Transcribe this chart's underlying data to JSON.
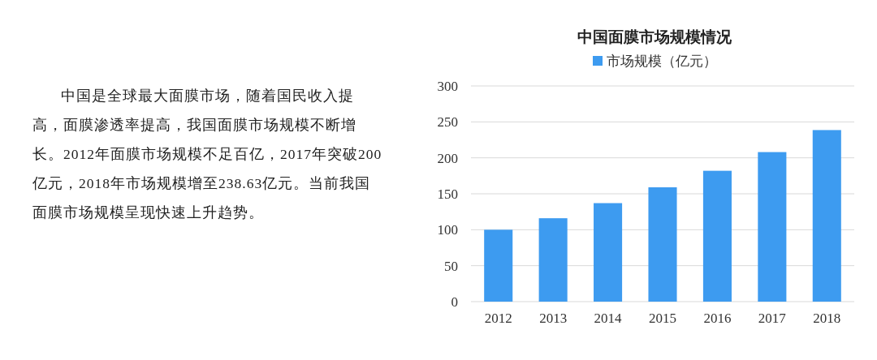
{
  "chart_data": [
    {
      "type": "other",
      "annotations": [
        "中国是全球最大面膜市场，随着国民收入提高，面膜渗透率提高，我国面膜市场规模不断增长。2012年面膜市场规模不足百亿，2017年突破200亿元，2018年市场规模增至238.63亿元。当前我国面膜市场规模呈现快速上升趋势。"
      ]
    },
    {
      "type": "bar",
      "title": "中国面膜市场规模情况",
      "categories": [
        "2012",
        "2013",
        "2014",
        "2015",
        "2016",
        "2017",
        "2018"
      ],
      "series": [
        {
          "name": "市场规模（亿元）",
          "color": "#3d9bf0",
          "values": [
            100,
            116,
            137,
            159,
            182,
            208,
            238.63
          ]
        }
      ],
      "ylim": [
        0,
        300
      ],
      "yticks": [
        0,
        50,
        100,
        150,
        200,
        250,
        300
      ],
      "grid": "y",
      "legend": "top"
    }
  ]
}
